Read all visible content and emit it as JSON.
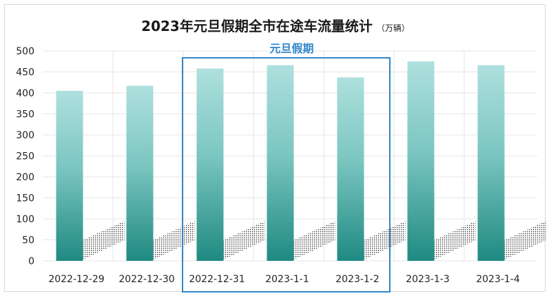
{
  "chart_data": {
    "type": "bar",
    "title": "2023年元旦假期全市在途车流量统计",
    "unit": "（万辆）",
    "categories": [
      "2022-12-29",
      "2022-12-30",
      "2022-12-31",
      "2023-1-1",
      "2023-1-2",
      "2023-1-3",
      "2023-1-4"
    ],
    "values": [
      405,
      417,
      458,
      466,
      437,
      475,
      466
    ],
    "ylim": [
      0,
      500
    ],
    "yticks": [
      0,
      50,
      100,
      150,
      200,
      250,
      300,
      350,
      400,
      450,
      500
    ],
    "grid": true,
    "highlight": {
      "label": "元旦假期",
      "categories": [
        "2022-12-31",
        "2023-1-1",
        "2023-1-2"
      ],
      "color": "#2f86c9"
    },
    "colors": {
      "bar_top": "#aee0de",
      "bar_bottom": "#1f8a82",
      "grid": "#e6e6e6"
    }
  }
}
